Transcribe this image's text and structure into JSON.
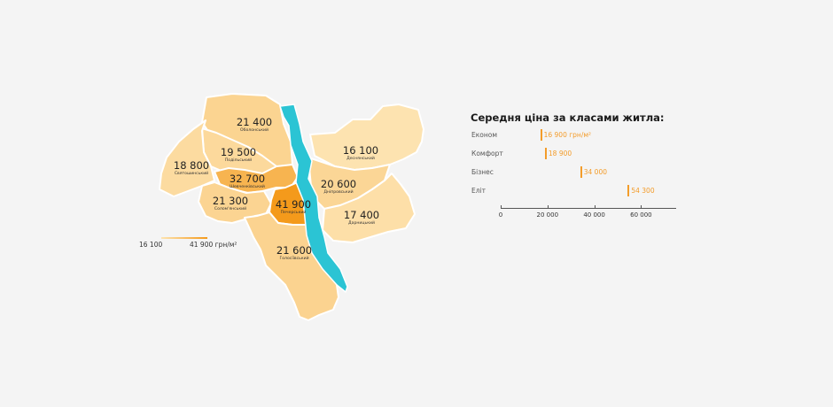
{
  "colors": {
    "background": "#f4f4f4",
    "scale_min": "#fde3b0",
    "scale_max": "#f49a1b",
    "river": "#2bc4d4",
    "accent": "#f39c2a"
  },
  "map": {
    "legend": {
      "min_label": "16 100",
      "max_label": "41 900 грн/м²",
      "min": 16100,
      "max": 41900
    },
    "districts": [
      {
        "id": "obolonskyi",
        "price_label": "21 400",
        "name": "Оболонський",
        "price": 21400
      },
      {
        "id": "podilskyi",
        "price_label": "19 500",
        "name": "Подільський",
        "price": 19500
      },
      {
        "id": "sviatoshynskyi",
        "price_label": "18 800",
        "name": "Святошинський",
        "price": 18800
      },
      {
        "id": "shevchenkivskyi",
        "price_label": "32 700",
        "name": "Шевченківський",
        "price": 32700
      },
      {
        "id": "solomianskyi",
        "price_label": "21 300",
        "name": "Солом'янський",
        "price": 21300
      },
      {
        "id": "pecherskyi",
        "price_label": "41 900",
        "name": "Печерський",
        "price": 41900
      },
      {
        "id": "holosiivskyi",
        "price_label": "21 600",
        "name": "Голосіївський",
        "price": 21600
      },
      {
        "id": "desnianskyi",
        "price_label": "16 100",
        "name": "Деснянський",
        "price": 16100
      },
      {
        "id": "dniprovskyi",
        "price_label": "20 600",
        "name": "Дніпровський",
        "price": 20600
      },
      {
        "id": "darnytskyi",
        "price_label": "17 400",
        "name": "Дарницький",
        "price": 17400
      }
    ]
  },
  "chart_data": {
    "type": "bar",
    "title": "Середня ціна за класами житла:",
    "categories": [
      "Економ",
      "Комфорт",
      "Бізнес",
      "Еліт"
    ],
    "values": [
      16900,
      18900,
      34000,
      54300
    ],
    "value_labels": [
      "16 900 грн/м²",
      "18 900",
      "34 000",
      "54 300"
    ],
    "xlim": [
      0,
      75000
    ],
    "xticks": [
      0,
      20000,
      40000,
      60000
    ],
    "xtick_labels": [
      "0",
      "20 000",
      "40 000",
      "60 000"
    ],
    "color": "#f39c2a"
  }
}
